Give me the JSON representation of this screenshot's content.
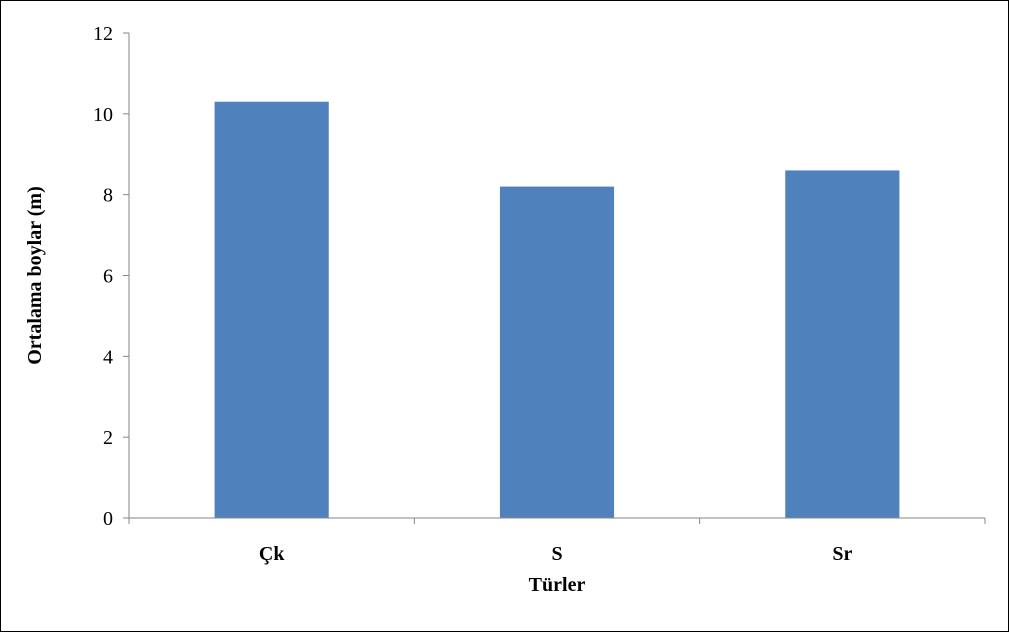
{
  "chart_data": {
    "type": "bar",
    "categories": [
      "Çk",
      "S",
      "Sr"
    ],
    "values": [
      10.3,
      8.2,
      8.6
    ],
    "title": "",
    "xlabel": "Türler",
    "ylabel": "Ortalama boylar (m)",
    "ylim": [
      0,
      12
    ],
    "yticks": [
      "0",
      "2",
      "4",
      "6",
      "8",
      "10",
      "12"
    ],
    "grid": false,
    "legend": "none",
    "bar_color": "#4f81bd",
    "axis_color": "#868686"
  }
}
